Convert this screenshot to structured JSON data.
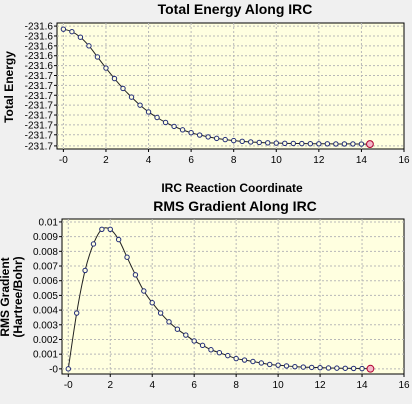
{
  "chart_data": [
    {
      "type": "line",
      "title": "Total Energy Along IRC",
      "xlabel": "IRC Reaction Coordinate",
      "ylabel": "Total Energy",
      "xlim": [
        -0.3,
        16
      ],
      "ylim": [
        -231.7045,
        -231.6025
      ],
      "x_ticks": [
        0,
        2,
        4,
        6,
        8,
        10,
        12,
        14,
        16
      ],
      "x_tick_labels": [
        "-0",
        "2",
        "4",
        "6",
        "8",
        "10",
        "12",
        "14",
        "16"
      ],
      "y_ticks": [
        -231.605,
        -231.613,
        -231.621,
        -231.629,
        -231.637,
        -231.645,
        -231.653,
        -231.661,
        -231.669,
        -231.677,
        -231.685,
        -231.693,
        -231.702
      ],
      "y_tick_labels": [
        "-231.6",
        "-231.6",
        "-231.6",
        "-231.6",
        "-231.6",
        "-231.7",
        "-231.7",
        "-231.7",
        "-231.7",
        "-231.7",
        "-231.7",
        "-231.7",
        "-231.7"
      ],
      "grid": true,
      "marker": "open-circle",
      "line_color": "#1f2a78",
      "highlight_color": "#b00030",
      "highlight_index": 36,
      "series": [
        {
          "x": [
            0,
            0.4,
            0.8,
            1.2,
            1.6,
            2.0,
            2.4,
            2.8,
            3.2,
            3.6,
            4.0,
            4.4,
            4.8,
            5.2,
            5.6,
            6.0,
            6.4,
            6.8,
            7.2,
            7.6,
            8.0,
            8.4,
            8.8,
            9.2,
            9.6,
            10.0,
            10.4,
            10.8,
            11.2,
            11.6,
            12.0,
            12.4,
            12.8,
            13.2,
            13.6,
            14.0,
            14.4
          ],
          "values": [
            -231.6075,
            -231.6095,
            -231.614,
            -231.621,
            -231.63,
            -231.639,
            -231.6475,
            -231.6555,
            -231.6625,
            -231.669,
            -231.6745,
            -231.679,
            -231.683,
            -231.6862,
            -231.689,
            -231.6913,
            -231.6932,
            -231.6947,
            -231.6959,
            -231.6969,
            -231.6977,
            -231.6983,
            -231.6988,
            -231.6992,
            -231.6995,
            -231.6997,
            -231.6999,
            -231.7,
            -231.7001,
            -231.7002,
            -231.7003,
            -231.7003,
            -231.7004,
            -231.7004,
            -231.7004,
            -231.7005,
            -231.7005
          ]
        }
      ]
    },
    {
      "type": "line",
      "title": "RMS Gradient Along IRC",
      "xlabel": "",
      "ylabel": "RMS Gradient",
      "ylabel2": "(Hartree/Bohr)",
      "xlim": [
        -0.3,
        16
      ],
      "ylim": [
        -0.00035,
        0.0102
      ],
      "x_ticks": [
        0,
        2,
        4,
        6,
        8,
        10,
        12,
        14,
        16
      ],
      "x_tick_labels": [
        "-0",
        "2",
        "4",
        "6",
        "8",
        "10",
        "12",
        "14",
        "16"
      ],
      "y_ticks": [
        0,
        0.001,
        0.002,
        0.003,
        0.004,
        0.005,
        0.006,
        0.007,
        0.008,
        0.009,
        0.01
      ],
      "y_tick_labels": [
        "-0",
        "0.001",
        "0.002",
        "0.003",
        "0.004",
        "0.005",
        "0.006",
        "0.007",
        "0.008",
        "0.009",
        "0.01"
      ],
      "grid": true,
      "marker": "open-circle",
      "line_color": "#1f2a78",
      "highlight_color": "#b00030",
      "highlight_index": 36,
      "series": [
        {
          "x": [
            0,
            0.4,
            0.8,
            1.2,
            1.6,
            2.0,
            2.4,
            2.8,
            3.2,
            3.6,
            4.0,
            4.4,
            4.8,
            5.2,
            5.6,
            6.0,
            6.4,
            6.8,
            7.2,
            7.6,
            8.0,
            8.4,
            8.8,
            9.2,
            9.6,
            10.0,
            10.4,
            10.8,
            11.2,
            11.6,
            12.0,
            12.4,
            12.8,
            13.2,
            13.6,
            14.0,
            14.4
          ],
          "values": [
            0.0,
            0.0038,
            0.0067,
            0.0085,
            0.0095,
            0.0095,
            0.0088,
            0.0076,
            0.0064,
            0.0053,
            0.0045,
            0.0038,
            0.0032,
            0.0027,
            0.0023,
            0.0019,
            0.0016,
            0.0013,
            0.0011,
            0.0009,
            0.0007,
            0.0006,
            0.0005,
            0.0004,
            0.0003,
            0.00025,
            0.0002,
            0.00015,
            0.00012,
            0.0001,
            8e-05,
            6e-05,
            5e-05,
            4e-05,
            3e-05,
            2e-05,
            1e-05
          ]
        }
      ]
    }
  ]
}
